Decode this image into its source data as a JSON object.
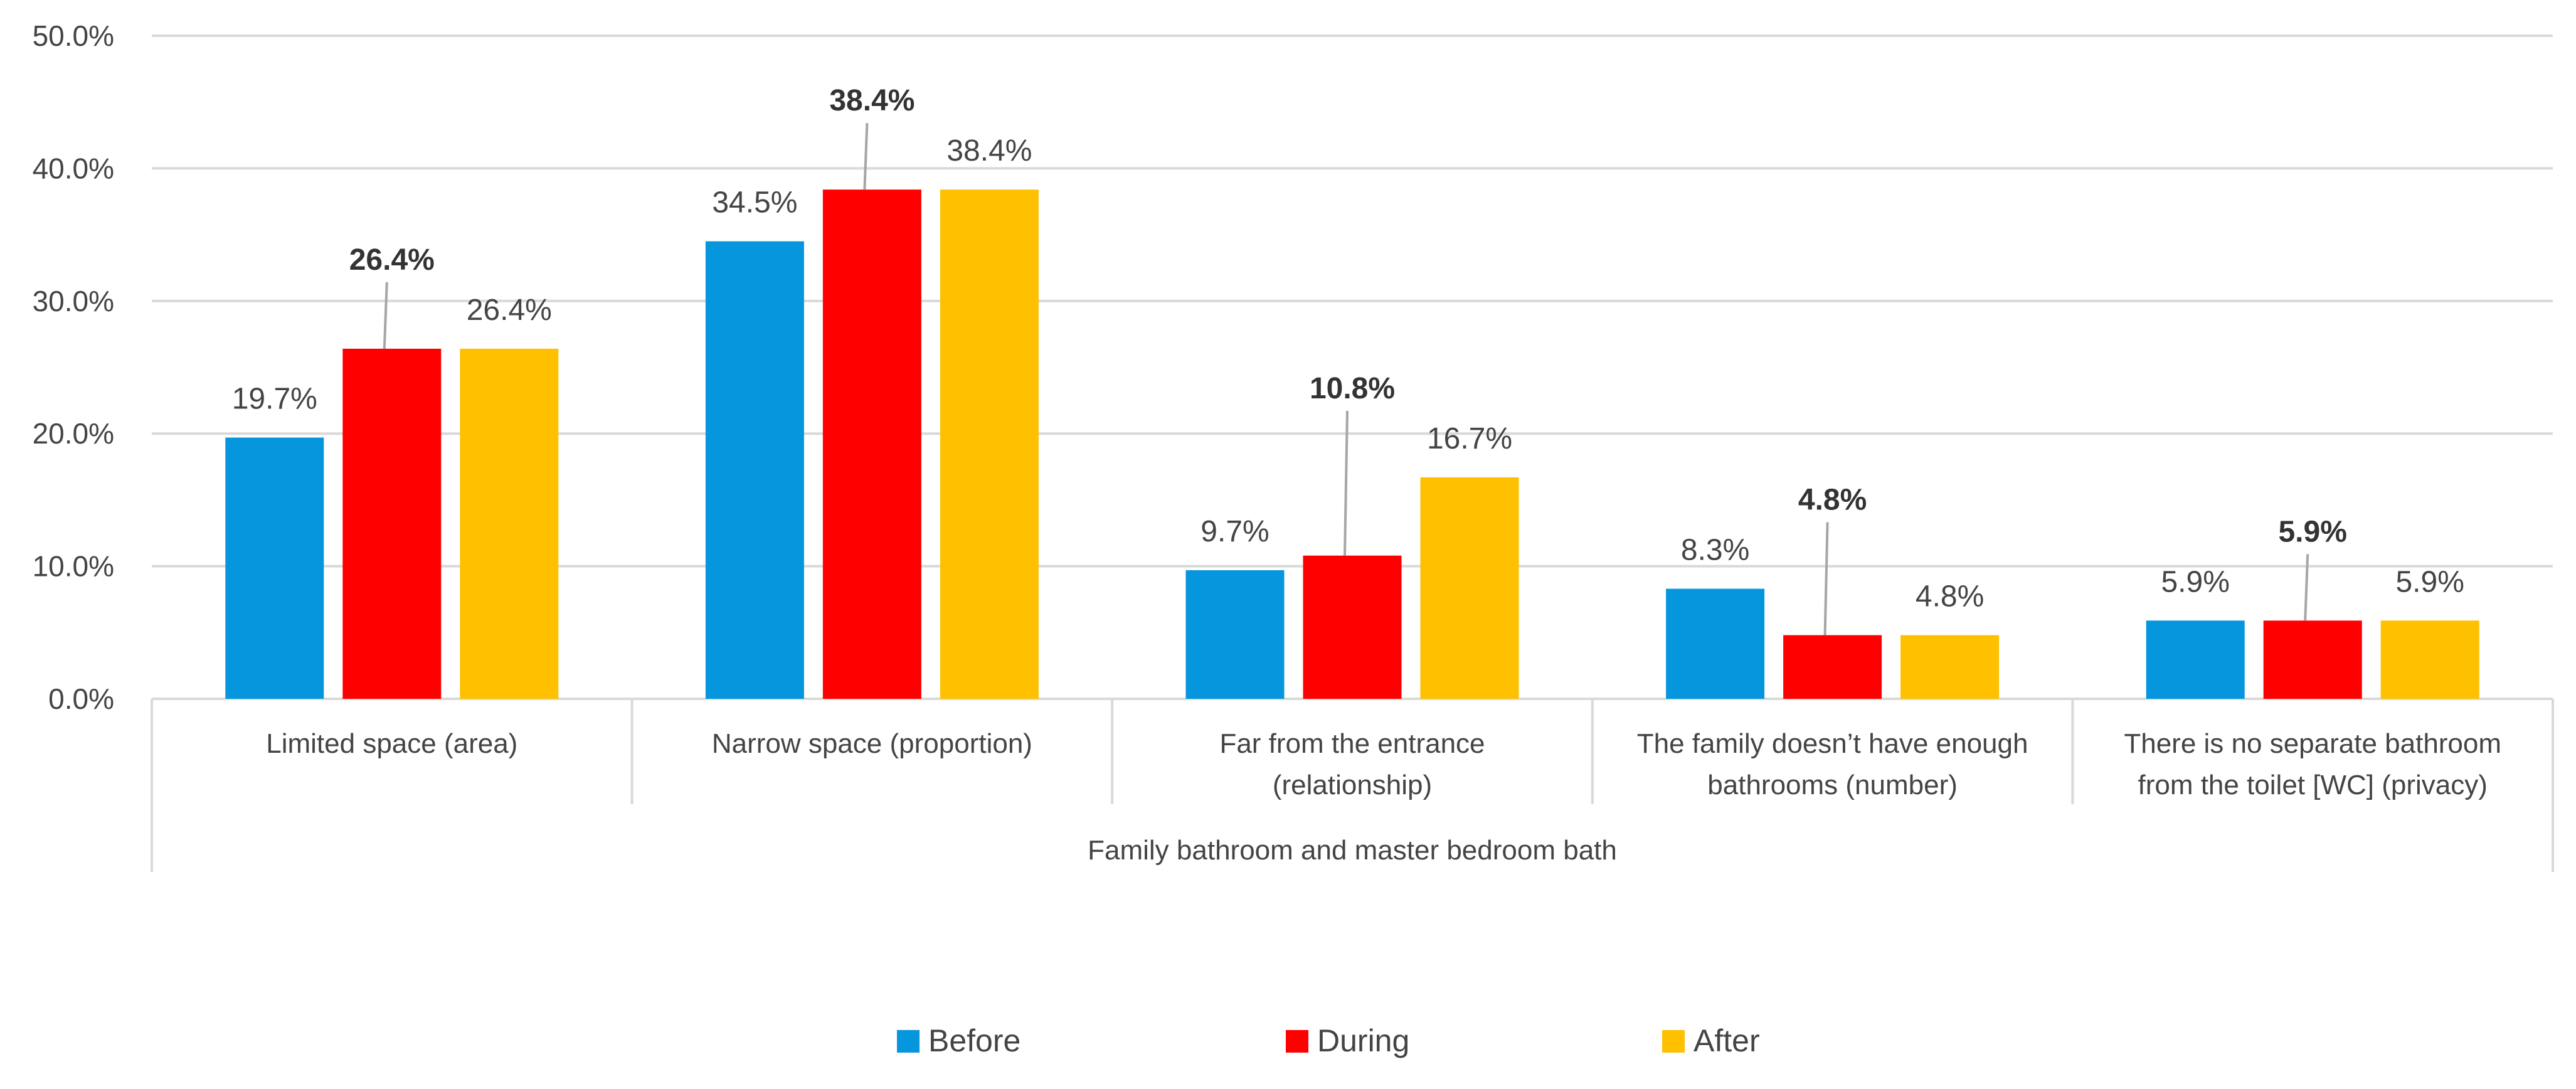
{
  "chart_data": {
    "type": "bar",
    "group_label": "Family bathroom and master bedroom bath",
    "categories": [
      [
        "Limited space (area)"
      ],
      [
        "Narrow space (proportion)"
      ],
      [
        "Far from the entrance",
        "(relationship)"
      ],
      [
        "The family doesn’t have enough",
        "bathrooms (number)"
      ],
      [
        "There is no separate bathroom",
        "from the toilet [WC] (privacy)"
      ]
    ],
    "series": [
      {
        "name": "Before",
        "color": "#0596DE",
        "values": [
          19.7,
          34.5,
          9.7,
          8.3,
          5.9
        ],
        "labels": [
          "19.7%",
          "34.5%",
          "9.7%",
          "8.3%",
          "5.9%"
        ],
        "bold": false
      },
      {
        "name": "During",
        "color": "#FF0000",
        "values": [
          26.4,
          38.4,
          10.8,
          4.8,
          5.9
        ],
        "labels": [
          "26.4%",
          "38.4%",
          "10.8%",
          "4.8%",
          "5.9%"
        ],
        "bold": true
      },
      {
        "name": "After",
        "color": "#FFC000",
        "values": [
          26.4,
          38.4,
          16.7,
          4.8,
          5.9
        ],
        "labels": [
          "26.4%",
          "38.4%",
          "16.7%",
          "4.8%",
          "5.9%"
        ],
        "bold": false
      }
    ],
    "ylim": [
      0,
      50
    ],
    "yticks": [
      0,
      10,
      20,
      30,
      40,
      50
    ],
    "ytick_labels": [
      "0.0%",
      "10.0%",
      "20.0%",
      "30.0%",
      "40.0%",
      "50.0%"
    ],
    "grid": true,
    "legend_position": "bottom"
  }
}
